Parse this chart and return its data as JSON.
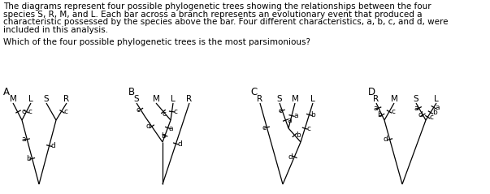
{
  "body_line1": "The diagrams represent four possible phylogenetic trees showing the relationships between the four",
  "body_line2": "species S, R, M, and L. Each bar across a branch represents an evolutionary event that produced a",
  "body_line3": "characteristic possessed by the species above the bar. Four different characteristics, a, b, c, and d, were",
  "body_line4": "included in this analysis.",
  "question": "Which of the four possible phylogenetic trees is the most parsimonious?",
  "fontsize_body": 7.5,
  "fontsize_label": 7.5,
  "fontsize_letter": 8.5,
  "background": "#ffffff"
}
